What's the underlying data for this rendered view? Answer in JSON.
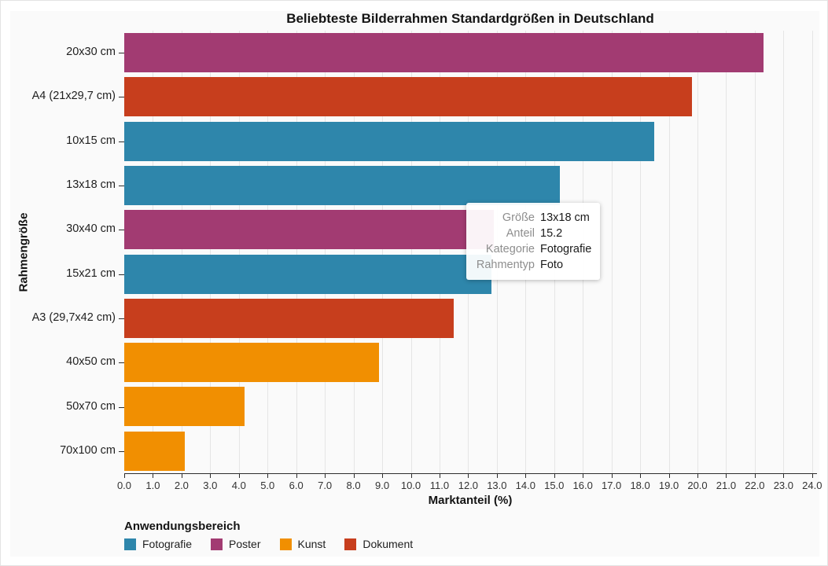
{
  "chart_data": {
    "type": "bar",
    "orientation": "horizontal",
    "title": "Beliebteste Bilderrahmen Standardgrößen in Deutschland",
    "xlabel": "Marktanteil (%)",
    "ylabel": "Rahmengröße",
    "xlim": [
      0.0,
      24.0
    ],
    "x_tick_step": 1.0,
    "grid": true,
    "categories": [
      "20x30 cm",
      "A4 (21x29,7 cm)",
      "10x15 cm",
      "13x18 cm",
      "30x40 cm",
      "15x21 cm",
      "A3 (29,7x42 cm)",
      "40x50 cm",
      "50x70 cm",
      "70x100 cm"
    ],
    "values": [
      22.3,
      19.8,
      18.5,
      15.2,
      12.9,
      12.8,
      11.5,
      8.9,
      4.2,
      2.1
    ],
    "groups": [
      "Poster",
      "Dokument",
      "Fotografie",
      "Fotografie",
      "Poster",
      "Fotografie",
      "Dokument",
      "Kunst",
      "Kunst",
      "Kunst"
    ],
    "colors": {
      "Fotografie": "#2E86AB",
      "Poster": "#A23B72",
      "Kunst": "#F18F01",
      "Dokument": "#C73E1D"
    },
    "legend": {
      "title": "Anwendungsbereich",
      "position": "bottom-left",
      "items": [
        "Fotografie",
        "Poster",
        "Kunst",
        "Dokument"
      ]
    },
    "plot_background": "#fafafa",
    "grid_color": "#e5e5e5",
    "axis_color": "#2d2d2d"
  },
  "tooltip": {
    "rows": [
      {
        "label": "Größe",
        "value": "13x18 cm"
      },
      {
        "label": "Anteil",
        "value": "15.2"
      },
      {
        "label": "Kategorie",
        "value": "Fotografie"
      },
      {
        "label": "Rahmentyp",
        "value": "Foto"
      }
    ]
  }
}
